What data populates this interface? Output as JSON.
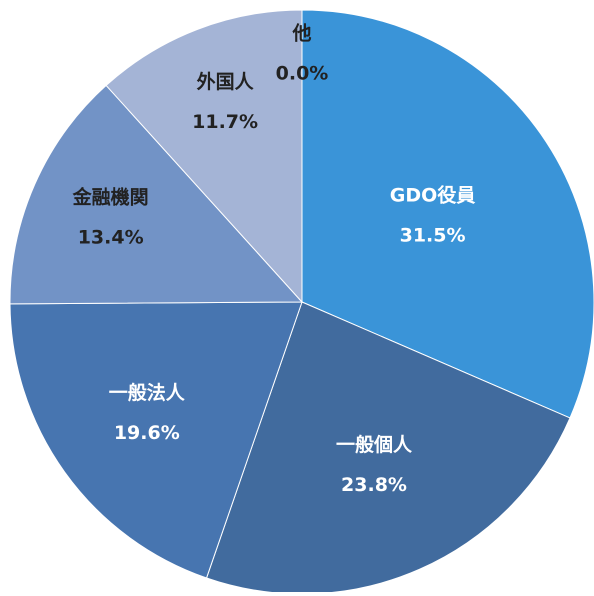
{
  "chart_data": {
    "type": "pie",
    "categories": [
      "GDO役員",
      "一般個人",
      "一般法人",
      "金融機関",
      "外国人",
      "他"
    ],
    "values": [
      31.5,
      23.8,
      19.6,
      13.4,
      11.7,
      0.0
    ],
    "value_labels": [
      "31.5%",
      "23.8%",
      "19.6%",
      "13.4%",
      "11.7%",
      "0.0%"
    ],
    "colors": [
      "#3a94d8",
      "#416b9e",
      "#4775b0",
      "#7293c6",
      "#a4b4d6",
      "#c9d3e8"
    ],
    "label_colors": [
      "#ffffff",
      "#ffffff",
      "#ffffff",
      "#222222",
      "#222222",
      "#222222"
    ]
  }
}
